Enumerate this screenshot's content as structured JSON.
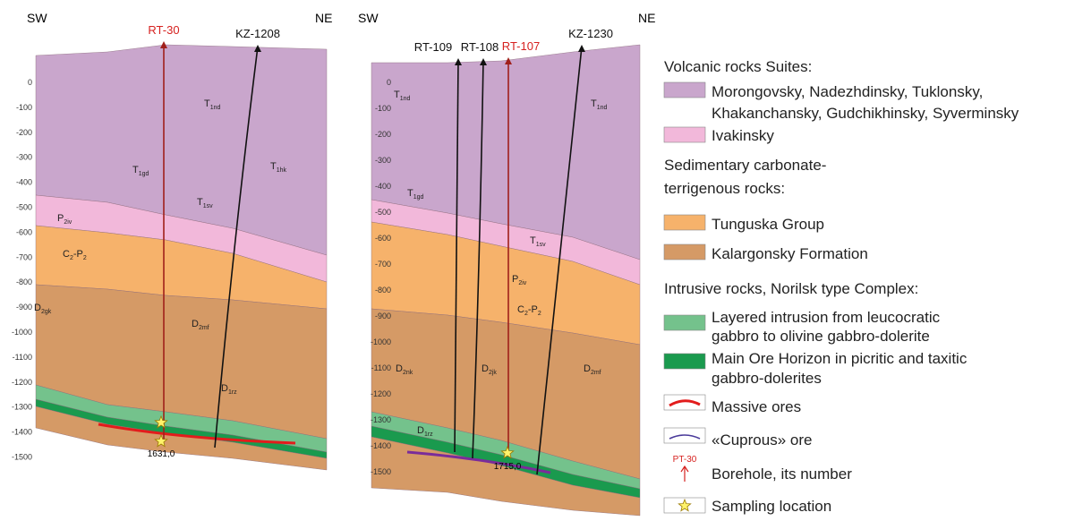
{
  "sections": [
    {
      "sw": "SW",
      "ne": "NE",
      "boreholes": [
        "RT-30",
        "KZ-1208"
      ],
      "depths": [
        0,
        -100,
        -200,
        -300,
        -400,
        -500,
        -600,
        -700,
        -800,
        -900,
        -1000,
        -1100,
        -1200,
        -1300,
        -1400,
        -1500
      ],
      "units": [
        {
          "base": "T",
          "sub": "1nd"
        },
        {
          "base": "T",
          "sub": "1gd"
        },
        {
          "base": "T",
          "sub": "1hk"
        },
        {
          "base": "T",
          "sub": "1sv"
        },
        {
          "base": "P",
          "sub": "2iv"
        },
        {
          "base": "C",
          "sub": "2",
          "rest": "-P",
          "sub2": "2"
        },
        {
          "base": "D",
          "sub": "2gk"
        },
        {
          "base": "D",
          "sub": "2mf"
        },
        {
          "base": "D",
          "sub": "1rz"
        }
      ],
      "bottom_depth": "1631,0"
    },
    {
      "sw": "SW",
      "ne": "NE",
      "boreholes": [
        "RT-109",
        "RT-108",
        "RT-107",
        "KZ-1230"
      ],
      "depths": [
        0,
        -100,
        -200,
        -300,
        -400,
        -500,
        -600,
        -700,
        -800,
        -900,
        -1000,
        -1100,
        -1200,
        -1300,
        -1400,
        -1500
      ],
      "units": [
        {
          "base": "T",
          "sub": "1nd"
        },
        {
          "base": "T",
          "sub": "1nd"
        },
        {
          "base": "T",
          "sub": "1gd"
        },
        {
          "base": "T",
          "sub": "1sv"
        },
        {
          "base": "P",
          "sub": "2iv"
        },
        {
          "base": "C",
          "sub": "2",
          "rest": "-P",
          "sub2": "2"
        },
        {
          "base": "D",
          "sub": "2nk"
        },
        {
          "base": "D",
          "sub": "2jk"
        },
        {
          "base": "D",
          "sub": "1rz"
        },
        {
          "base": "D",
          "sub": "2mf"
        }
      ],
      "bottom_depth": "1715,0"
    }
  ],
  "legend": {
    "volcanic_title": "Volcanic rocks Suites:",
    "volcanic": [
      [
        "Morongovsky, Nadezhdinsky, Tuklonsky,",
        "Khakanchansky, Gudchikhinsky, Syverminsky"
      ],
      [
        "Ivakinsky"
      ]
    ],
    "sedimentary_title": [
      "Sedimentary carbonate-",
      "terrigenous rocks:"
    ],
    "sedimentary": [
      "Tunguska Group",
      "Kalargonsky Formation"
    ],
    "intrusive_title": "Intrusive rocks, Norilsk type Complex:",
    "intrusive": [
      [
        "Layered intrusion from leucocratic",
        "gabbro to olivine gabbro-dolerite"
      ],
      [
        "Main Ore Horizon in picritic and taxitic",
        "gabbro-dolerites"
      ]
    ],
    "massive": "Massive ores",
    "cuprous": "«Cuprous» ore",
    "borehole_sample": "PT-30",
    "borehole": "Borehole, its number",
    "sampling": "Sampling location"
  }
}
